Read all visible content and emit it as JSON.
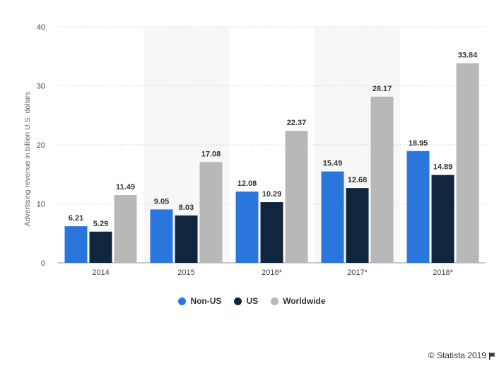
{
  "chart_data": {
    "type": "bar",
    "categories": [
      "2014",
      "2015",
      "2016*",
      "2017*",
      "2018*"
    ],
    "series": [
      {
        "name": "Non-US",
        "color": "#2a76dd",
        "values": [
          6.21,
          9.05,
          12.08,
          15.49,
          18.95
        ]
      },
      {
        "name": "US",
        "color": "#10263f",
        "values": [
          5.29,
          8.03,
          10.29,
          12.68,
          14.89
        ]
      },
      {
        "name": "Worldwide",
        "color": "#b8b8b8",
        "values": [
          11.49,
          17.08,
          22.37,
          28.17,
          33.84
        ]
      }
    ],
    "value_labels": [
      [
        "6.21",
        "9.05",
        "12.08",
        "15.49",
        "18.95"
      ],
      [
        "5.29",
        "8.03",
        "10.29",
        "12.68",
        "14.89"
      ],
      [
        "11.49",
        "17.08",
        "22.37",
        "28.17",
        "33.84"
      ]
    ],
    "ylabel": "Advertising revenue in billion U.S. dollars",
    "xlabel": "",
    "ylim": [
      0,
      40
    ],
    "yticks": [
      0,
      10,
      20,
      30,
      40
    ],
    "ytick_labels": [
      "0",
      "10",
      "20",
      "30",
      "40"
    ],
    "grid": "horizontal-dotted",
    "shaded_bands": [
      "2015",
      "2017*"
    ],
    "legend_position": "bottom-center"
  },
  "credit": {
    "text": "© Statista 2019",
    "icon": "flag-icon"
  }
}
